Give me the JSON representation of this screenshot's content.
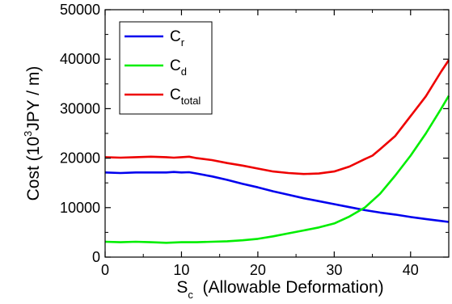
{
  "chart_data": {
    "type": "line",
    "title": "",
    "xlabel": {
      "main": "S",
      "sub": "c",
      "rest": "  (Allowable Deformation)"
    },
    "ylabel": {
      "pre": "Cost (10",
      "sup": "3",
      "post": "JPY / m)"
    },
    "xlim": [
      0,
      45
    ],
    "ylim": [
      0,
      50000
    ],
    "xticks": [
      0,
      10,
      20,
      30,
      40
    ],
    "yticks": [
      0,
      10000,
      20000,
      30000,
      40000,
      50000
    ],
    "grid": false,
    "legend_position": "top-left",
    "series": [
      {
        "name": "C",
        "name_sub": "r",
        "color": "#0000ee",
        "points": [
          [
            0,
            17100
          ],
          [
            2,
            17000
          ],
          [
            4,
            17100
          ],
          [
            6,
            17100
          ],
          [
            8,
            17100
          ],
          [
            9,
            17200
          ],
          [
            10,
            17100
          ],
          [
            11,
            17150
          ],
          [
            12,
            16900
          ],
          [
            14,
            16300
          ],
          [
            16,
            15600
          ],
          [
            18,
            14800
          ],
          [
            20,
            14100
          ],
          [
            22,
            13300
          ],
          [
            24,
            12600
          ],
          [
            26,
            11900
          ],
          [
            28,
            11300
          ],
          [
            30,
            10700
          ],
          [
            32,
            10100
          ],
          [
            34,
            9500
          ],
          [
            36,
            9000
          ],
          [
            38,
            8600
          ],
          [
            40,
            8100
          ],
          [
            42,
            7700
          ],
          [
            44,
            7300
          ],
          [
            45,
            7100
          ]
        ]
      },
      {
        "name": "C",
        "name_sub": "d",
        "color": "#00ee00",
        "points": [
          [
            0,
            3100
          ],
          [
            2,
            3000
          ],
          [
            4,
            3100
          ],
          [
            6,
            3000
          ],
          [
            8,
            2900
          ],
          [
            10,
            3000
          ],
          [
            12,
            3000
          ],
          [
            14,
            3100
          ],
          [
            16,
            3200
          ],
          [
            18,
            3400
          ],
          [
            20,
            3700
          ],
          [
            22,
            4200
          ],
          [
            24,
            4800
          ],
          [
            26,
            5400
          ],
          [
            28,
            6000
          ],
          [
            30,
            6800
          ],
          [
            32,
            8200
          ],
          [
            34,
            10000
          ],
          [
            36,
            12800
          ],
          [
            38,
            16500
          ],
          [
            40,
            20500
          ],
          [
            42,
            25000
          ],
          [
            44,
            30000
          ],
          [
            45,
            32600
          ]
        ]
      },
      {
        "name": "C",
        "name_sub": "total",
        "color": "#ee0000",
        "points": [
          [
            0,
            20200
          ],
          [
            2,
            20100
          ],
          [
            4,
            20200
          ],
          [
            6,
            20300
          ],
          [
            8,
            20200
          ],
          [
            9,
            20100
          ],
          [
            10,
            20200
          ],
          [
            11,
            20300
          ],
          [
            12,
            20000
          ],
          [
            14,
            19600
          ],
          [
            16,
            19000
          ],
          [
            18,
            18500
          ],
          [
            20,
            17900
          ],
          [
            22,
            17300
          ],
          [
            24,
            17000
          ],
          [
            26,
            16800
          ],
          [
            28,
            16900
          ],
          [
            30,
            17300
          ],
          [
            32,
            18300
          ],
          [
            34,
            19800
          ],
          [
            35,
            20500
          ],
          [
            36,
            21800
          ],
          [
            38,
            24500
          ],
          [
            40,
            28500
          ],
          [
            42,
            32500
          ],
          [
            44,
            37500
          ],
          [
            45,
            39800
          ]
        ]
      }
    ]
  }
}
